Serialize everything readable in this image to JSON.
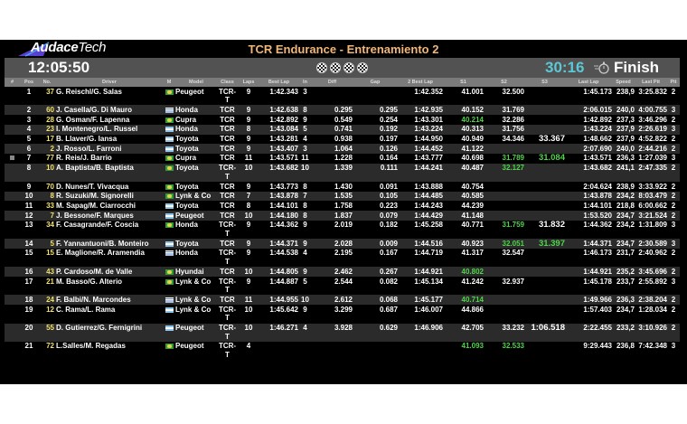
{
  "header": {
    "logo_main": "Audace",
    "logo_sub": "Tech",
    "title": "TCR Endurance - Entrenamiento 2",
    "clock": "12:05:50",
    "remaining": "30:16",
    "status": "Finish",
    "status_icon": "stopwatch-icon",
    "flag_icon": "checkered-flag-icon",
    "remaining_color": "#5cc8d6",
    "title_color": "#f1b678",
    "best_sector_color": "#4fd64a"
  },
  "columns": [
    "#",
    "Pos",
    "No.",
    "Driver",
    "M",
    "Model",
    "Class",
    "Laps",
    "Best Lap",
    "In",
    "Diff",
    "Gap",
    "2 Best Lap",
    "S1",
    "S2",
    "S3",
    "Last Lap",
    "Speed",
    "Last Pit",
    "Pit"
  ],
  "rows": [
    {
      "mark": false,
      "pos": "1",
      "no": "37",
      "driver": "G. Reischl/G. Salas",
      "flag": "BR",
      "model": "Peugeot",
      "class": "TCR-T",
      "laps": "9",
      "best": "1:42.343",
      "in": "3",
      "diff": "",
      "gap": "",
      "best2": "1:42.352",
      "s1": "41.001",
      "s2": "32.500",
      "s3": "",
      "last": "1:45.173",
      "speed": "238,9",
      "lastpit": "3:25.832",
      "pit": "2",
      "green": []
    },
    {
      "mark": false,
      "pos": "2",
      "no": "60",
      "driver": "J. Casella/G. Di Mauro",
      "flag": "UY",
      "model": "Honda",
      "class": "TCR",
      "laps": "9",
      "best": "1:42.638",
      "in": "8",
      "diff": "0.295",
      "gap": "0.295",
      "best2": "1:42.935",
      "s1": "40.152",
      "s2": "31.769",
      "s3": "",
      "last": "2:06.015",
      "speed": "240,0",
      "lastpit": "4:00.755",
      "pit": "3",
      "green": []
    },
    {
      "mark": false,
      "pos": "3",
      "no": "28",
      "driver": "G. Osman/F. Lapenna",
      "flag": "BR",
      "model": "Cupra",
      "class": "TCR",
      "laps": "9",
      "best": "1:42.892",
      "in": "9",
      "diff": "0.549",
      "gap": "0.254",
      "best2": "1:43.301",
      "s1": "40.214",
      "s2": "32.286",
      "s3": "",
      "last": "1:42.892",
      "speed": "237,3",
      "lastpit": "3:46.296",
      "pit": "2",
      "green": [
        "s1"
      ]
    },
    {
      "mark": false,
      "pos": "4",
      "no": "23",
      "driver": "I. Montenegro/L. Russel",
      "flag": "AR",
      "model": "Honda",
      "class": "TCR",
      "laps": "8",
      "best": "1:43.084",
      "in": "5",
      "diff": "0.741",
      "gap": "0.192",
      "best2": "1:43.224",
      "s1": "40.313",
      "s2": "31.756",
      "s3": "",
      "last": "1:43.224",
      "speed": "237,9",
      "lastpit": "2:26.619",
      "pit": "3",
      "green": []
    },
    {
      "mark": false,
      "pos": "5",
      "no": "17",
      "driver": "B. Llaver/G. Iansa",
      "flag": "AR",
      "model": "Toyota",
      "class": "TCR",
      "laps": "9",
      "best": "1:43.281",
      "in": "4",
      "diff": "0.938",
      "gap": "0.197",
      "best2": "1:44.950",
      "s1": "40.949",
      "s2": "34.346",
      "s3": "33.367",
      "last": "1:48.662",
      "speed": "237,9",
      "lastpit": "4:52.822",
      "pit": "2",
      "green": []
    },
    {
      "mark": false,
      "pos": "6",
      "no": "2",
      "driver": "J. Rosso/L. Farroni",
      "flag": "AR",
      "model": "Toyota",
      "class": "TCR",
      "laps": "9",
      "best": "1:43.407",
      "in": "3",
      "diff": "1.064",
      "gap": "0.126",
      "best2": "1:44.452",
      "s1": "41.122",
      "s2": "",
      "s3": "",
      "last": "2:07.690",
      "speed": "240,0",
      "lastpit": "2:44.216",
      "pit": "2",
      "green": []
    },
    {
      "mark": true,
      "pos": "7",
      "no": "77",
      "driver": "R. Reis/J. Barrio",
      "flag": "BR",
      "model": "Cupra",
      "class": "TCR",
      "laps": "11",
      "best": "1:43.571",
      "in": "11",
      "diff": "1.228",
      "gap": "0.164",
      "best2": "1:43.777",
      "s1": "40.698",
      "s2": "31.789",
      "s3": "31.084",
      "last": "1:43.571",
      "speed": "236,3",
      "lastpit": "1:27.039",
      "pit": "3",
      "green": [
        "s2",
        "s3"
      ]
    },
    {
      "mark": false,
      "pos": "8",
      "no": "10",
      "driver": "A. Baptista/B. Baptista",
      "flag": "BR",
      "model": "Toyota",
      "class": "TCR-T",
      "laps": "10",
      "best": "1:43.682",
      "in": "10",
      "diff": "1.339",
      "gap": "0.111",
      "best2": "1:44.241",
      "s1": "40.487",
      "s2": "32.127",
      "s3": "",
      "last": "1:43.682",
      "speed": "241,1",
      "lastpit": "2:47.335",
      "pit": "2",
      "green": [
        "s2"
      ]
    },
    {
      "mark": false,
      "pos": "9",
      "no": "70",
      "driver": "D. Nunes/T. Vivacqua",
      "flag": "BR",
      "model": "Toyota",
      "class": "TCR",
      "laps": "9",
      "best": "1:43.773",
      "in": "8",
      "diff": "1.430",
      "gap": "0.091",
      "best2": "1:43.888",
      "s1": "40.754",
      "s2": "",
      "s3": "",
      "last": "2:04.624",
      "speed": "238,9",
      "lastpit": "3:33.922",
      "pit": "2",
      "green": []
    },
    {
      "mark": false,
      "pos": "10",
      "no": "8",
      "driver": "R. Suzuki/M. Signorelli",
      "flag": "BR",
      "model": "Lynk & Co",
      "class": "TCR",
      "laps": "7",
      "best": "1:43.878",
      "in": "7",
      "diff": "1.535",
      "gap": "0.105",
      "best2": "1:44.485",
      "s1": "40.585",
      "s2": "",
      "s3": "",
      "last": "1:43.878",
      "speed": "234,2",
      "lastpit": "8:03.479",
      "pit": "2",
      "green": []
    },
    {
      "mark": false,
      "pos": "11",
      "no": "33",
      "driver": "M. Sapag/M. Ciarrocchi",
      "flag": "AR",
      "model": "Toyota",
      "class": "TCR",
      "laps": "8",
      "best": "1:44.101",
      "in": "8",
      "diff": "1.758",
      "gap": "0.223",
      "best2": "1:44.243",
      "s1": "44.239",
      "s2": "",
      "s3": "",
      "last": "1:44.101",
      "speed": "218,8",
      "lastpit": "6:00.662",
      "pit": "2",
      "green": []
    },
    {
      "mark": false,
      "pos": "12",
      "no": "7",
      "driver": "J. Bessone/F. Marques",
      "flag": "AR",
      "model": "Peugeot",
      "class": "TCR",
      "laps": "10",
      "best": "1:44.180",
      "in": "8",
      "diff": "1.837",
      "gap": "0.079",
      "best2": "1:44.429",
      "s1": "41.148",
      "s2": "",
      "s3": "",
      "last": "1:53.520",
      "speed": "234,7",
      "lastpit": "3:21.524",
      "pit": "2",
      "green": []
    },
    {
      "mark": false,
      "pos": "13",
      "no": "34",
      "driver": "F. Casagrande/F. Coscia",
      "flag": "BR",
      "model": "Honda",
      "class": "TCR-T",
      "laps": "9",
      "best": "1:44.362",
      "in": "9",
      "diff": "2.019",
      "gap": "0.182",
      "best2": "1:45.258",
      "s1": "40.771",
      "s2": "31.759",
      "s3": "31.832",
      "last": "1:44.362",
      "speed": "234,2",
      "lastpit": "1:31.809",
      "pit": "3",
      "green": [
        "s2"
      ]
    },
    {
      "mark": false,
      "pos": "14",
      "no": "5",
      "driver": "F. Yannantuoni/B. Monteiro",
      "flag": "AR",
      "model": "Toyota",
      "class": "TCR",
      "laps": "9",
      "best": "1:44.371",
      "in": "9",
      "diff": "2.028",
      "gap": "0.009",
      "best2": "1:44.516",
      "s1": "40.923",
      "s2": "32.051",
      "s3": "31.397",
      "last": "1:44.371",
      "speed": "234,7",
      "lastpit": "2:30.589",
      "pit": "3",
      "green": [
        "s2",
        "s3"
      ]
    },
    {
      "mark": false,
      "pos": "15",
      "no": "15",
      "driver": "E. Maglione/R. Aramendia",
      "flag": "UY",
      "model": "Honda",
      "class": "TCR-T",
      "laps": "9",
      "best": "1:44.538",
      "in": "4",
      "diff": "2.195",
      "gap": "0.167",
      "best2": "1:44.719",
      "s1": "41.317",
      "s2": "32.547",
      "s3": "",
      "last": "1:46.173",
      "speed": "231,7",
      "lastpit": "2:40.962",
      "pit": "2",
      "green": []
    },
    {
      "mark": false,
      "pos": "16",
      "no": "43",
      "driver": "P. Cardoso/M. de Valle",
      "flag": "BR",
      "model": "Hyundai",
      "class": "TCR",
      "laps": "10",
      "best": "1:44.805",
      "in": "9",
      "diff": "2.462",
      "gap": "0.267",
      "best2": "1:44.921",
      "s1": "40.802",
      "s2": "",
      "s3": "",
      "last": "1:44.921",
      "speed": "235,2",
      "lastpit": "3:45.696",
      "pit": "2",
      "green": [
        "s1"
      ]
    },
    {
      "mark": false,
      "pos": "17",
      "no": "21",
      "driver": "M. Basso/G. Alterio",
      "flag": "BR",
      "model": "Lynk & Co",
      "class": "TCR-T",
      "laps": "9",
      "best": "1:44.887",
      "in": "5",
      "diff": "2.544",
      "gap": "0.082",
      "best2": "1:45.134",
      "s1": "41.242",
      "s2": "32.937",
      "s3": "",
      "last": "1:45.178",
      "speed": "233,7",
      "lastpit": "2:55.892",
      "pit": "3",
      "green": []
    },
    {
      "mark": false,
      "pos": "18",
      "no": "24",
      "driver": "F. Balbi/N. Marcondes",
      "flag": "UY",
      "model": "Lynk & Co",
      "class": "TCR",
      "laps": "11",
      "best": "1:44.955",
      "in": "10",
      "diff": "2.612",
      "gap": "0.068",
      "best2": "1:45.177",
      "s1": "40.714",
      "s2": "",
      "s3": "",
      "last": "1:49.966",
      "speed": "236,3",
      "lastpit": "2:38.204",
      "pit": "2",
      "green": [
        "s1"
      ]
    },
    {
      "mark": false,
      "pos": "19",
      "no": "12",
      "driver": "C. Rama/L. Rama",
      "flag": "AR",
      "model": "Lynk & Co",
      "class": "TCR-T",
      "laps": "10",
      "best": "1:45.642",
      "in": "9",
      "diff": "3.299",
      "gap": "0.687",
      "best2": "1:46.007",
      "s1": "44.866",
      "s2": "",
      "s3": "",
      "last": "1:57.403",
      "speed": "234,7",
      "lastpit": "1:28.034",
      "pit": "2",
      "green": []
    },
    {
      "mark": false,
      "pos": "20",
      "no": "55",
      "driver": "D. Gutierrez/G. Fernigrini",
      "flag": "AR",
      "model": "Peugeot",
      "class": "TCR-T",
      "laps": "10",
      "best": "1:46.271",
      "in": "4",
      "diff": "3.928",
      "gap": "0.629",
      "best2": "1:46.906",
      "s1": "42.705",
      "s2": "33.232",
      "s3": "1:06.518",
      "last": "2:22.455",
      "speed": "233,2",
      "lastpit": "3:10.926",
      "pit": "2",
      "green": []
    },
    {
      "mark": false,
      "pos": "21",
      "no": "72",
      "driver": "L.Salles/M. Regadas",
      "flag": "BR",
      "model": "Peugeot",
      "class": "TCR-T",
      "laps": "4",
      "best": "",
      "in": "",
      "diff": "",
      "gap": "",
      "best2": "",
      "s1": "41.093",
      "s2": "32.533",
      "s3": "",
      "last": "9:29.443",
      "speed": "236,8",
      "lastpit": "7:42.348",
      "pit": "3",
      "green": [
        "s1",
        "s2"
      ]
    }
  ]
}
